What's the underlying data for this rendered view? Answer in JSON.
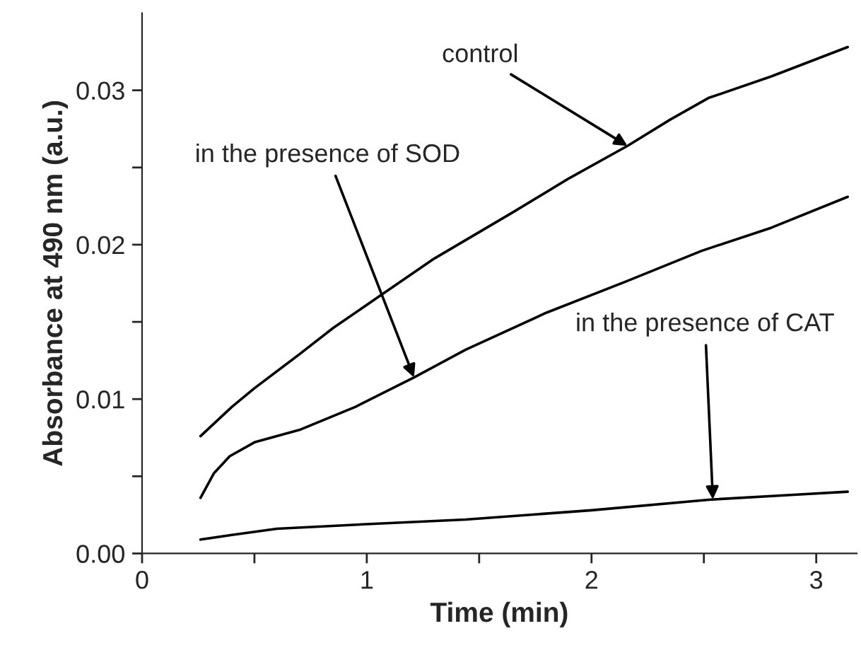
{
  "chart_data": {
    "type": "line",
    "xlabel": "Time (min)",
    "ylabel": "Absorbance at 490 nm (a.u.)",
    "xlim": [
      0,
      3.18
    ],
    "ylim": [
      0,
      0.035
    ],
    "xticks": [
      0,
      {
        "value": 0.5,
        "label": null
      },
      1,
      {
        "value": 1.5,
        "label": null
      },
      2,
      {
        "value": 2.5,
        "label": null
      },
      3
    ],
    "yticks": [
      "0.00",
      {
        "value": 0.005,
        "label": null
      },
      0.01,
      {
        "value": 0.015,
        "label": null
      },
      0.02,
      {
        "value": 0.025,
        "label": null
      },
      0.03
    ],
    "grid": false,
    "legend": false,
    "marker": "none",
    "line_style": "solid",
    "series": [
      {
        "color": "#000000",
        "x": [
          0.26,
          0.4,
          0.5,
          0.7,
          0.85,
          1.04,
          1.3,
          1.65,
          1.9,
          2.16,
          2.35,
          2.52,
          2.8,
          3.14
        ],
        "values": [
          0.0076,
          0.0095,
          0.0107,
          0.0129,
          0.0146,
          0.0165,
          0.0191,
          0.0221,
          0.0243,
          0.0264,
          0.0281,
          0.0295,
          0.0309,
          0.0328
        ]
      },
      {
        "color": "#000000",
        "x": [
          0.26,
          0.32,
          0.39,
          0.5,
          0.7,
          0.95,
          1.21,
          1.44,
          1.8,
          2.15,
          2.49,
          2.8,
          3.14
        ],
        "values": [
          0.0036,
          0.0052,
          0.0063,
          0.0072,
          0.008,
          0.0095,
          0.0114,
          0.0132,
          0.0156,
          0.0176,
          0.0196,
          0.0211,
          0.0231
        ]
      },
      {
        "color": "#000000",
        "x": [
          0.26,
          0.4,
          0.6,
          1.0,
          1.44,
          2.0,
          2.54,
          2.9,
          3.14
        ],
        "values": [
          0.0009,
          0.0012,
          0.0016,
          0.0019,
          0.0022,
          0.0028,
          0.0035,
          0.0038,
          0.004
        ]
      }
    ],
    "annotations": [
      {
        "text": "control",
        "x": 2.16,
        "y": 0.0264
      },
      {
        "text": "in the presence of SOD",
        "x": 1.21,
        "y": 0.0114
      },
      {
        "text": "in the presence of CAT",
        "x": 2.54,
        "y": 0.0035
      }
    ]
  }
}
